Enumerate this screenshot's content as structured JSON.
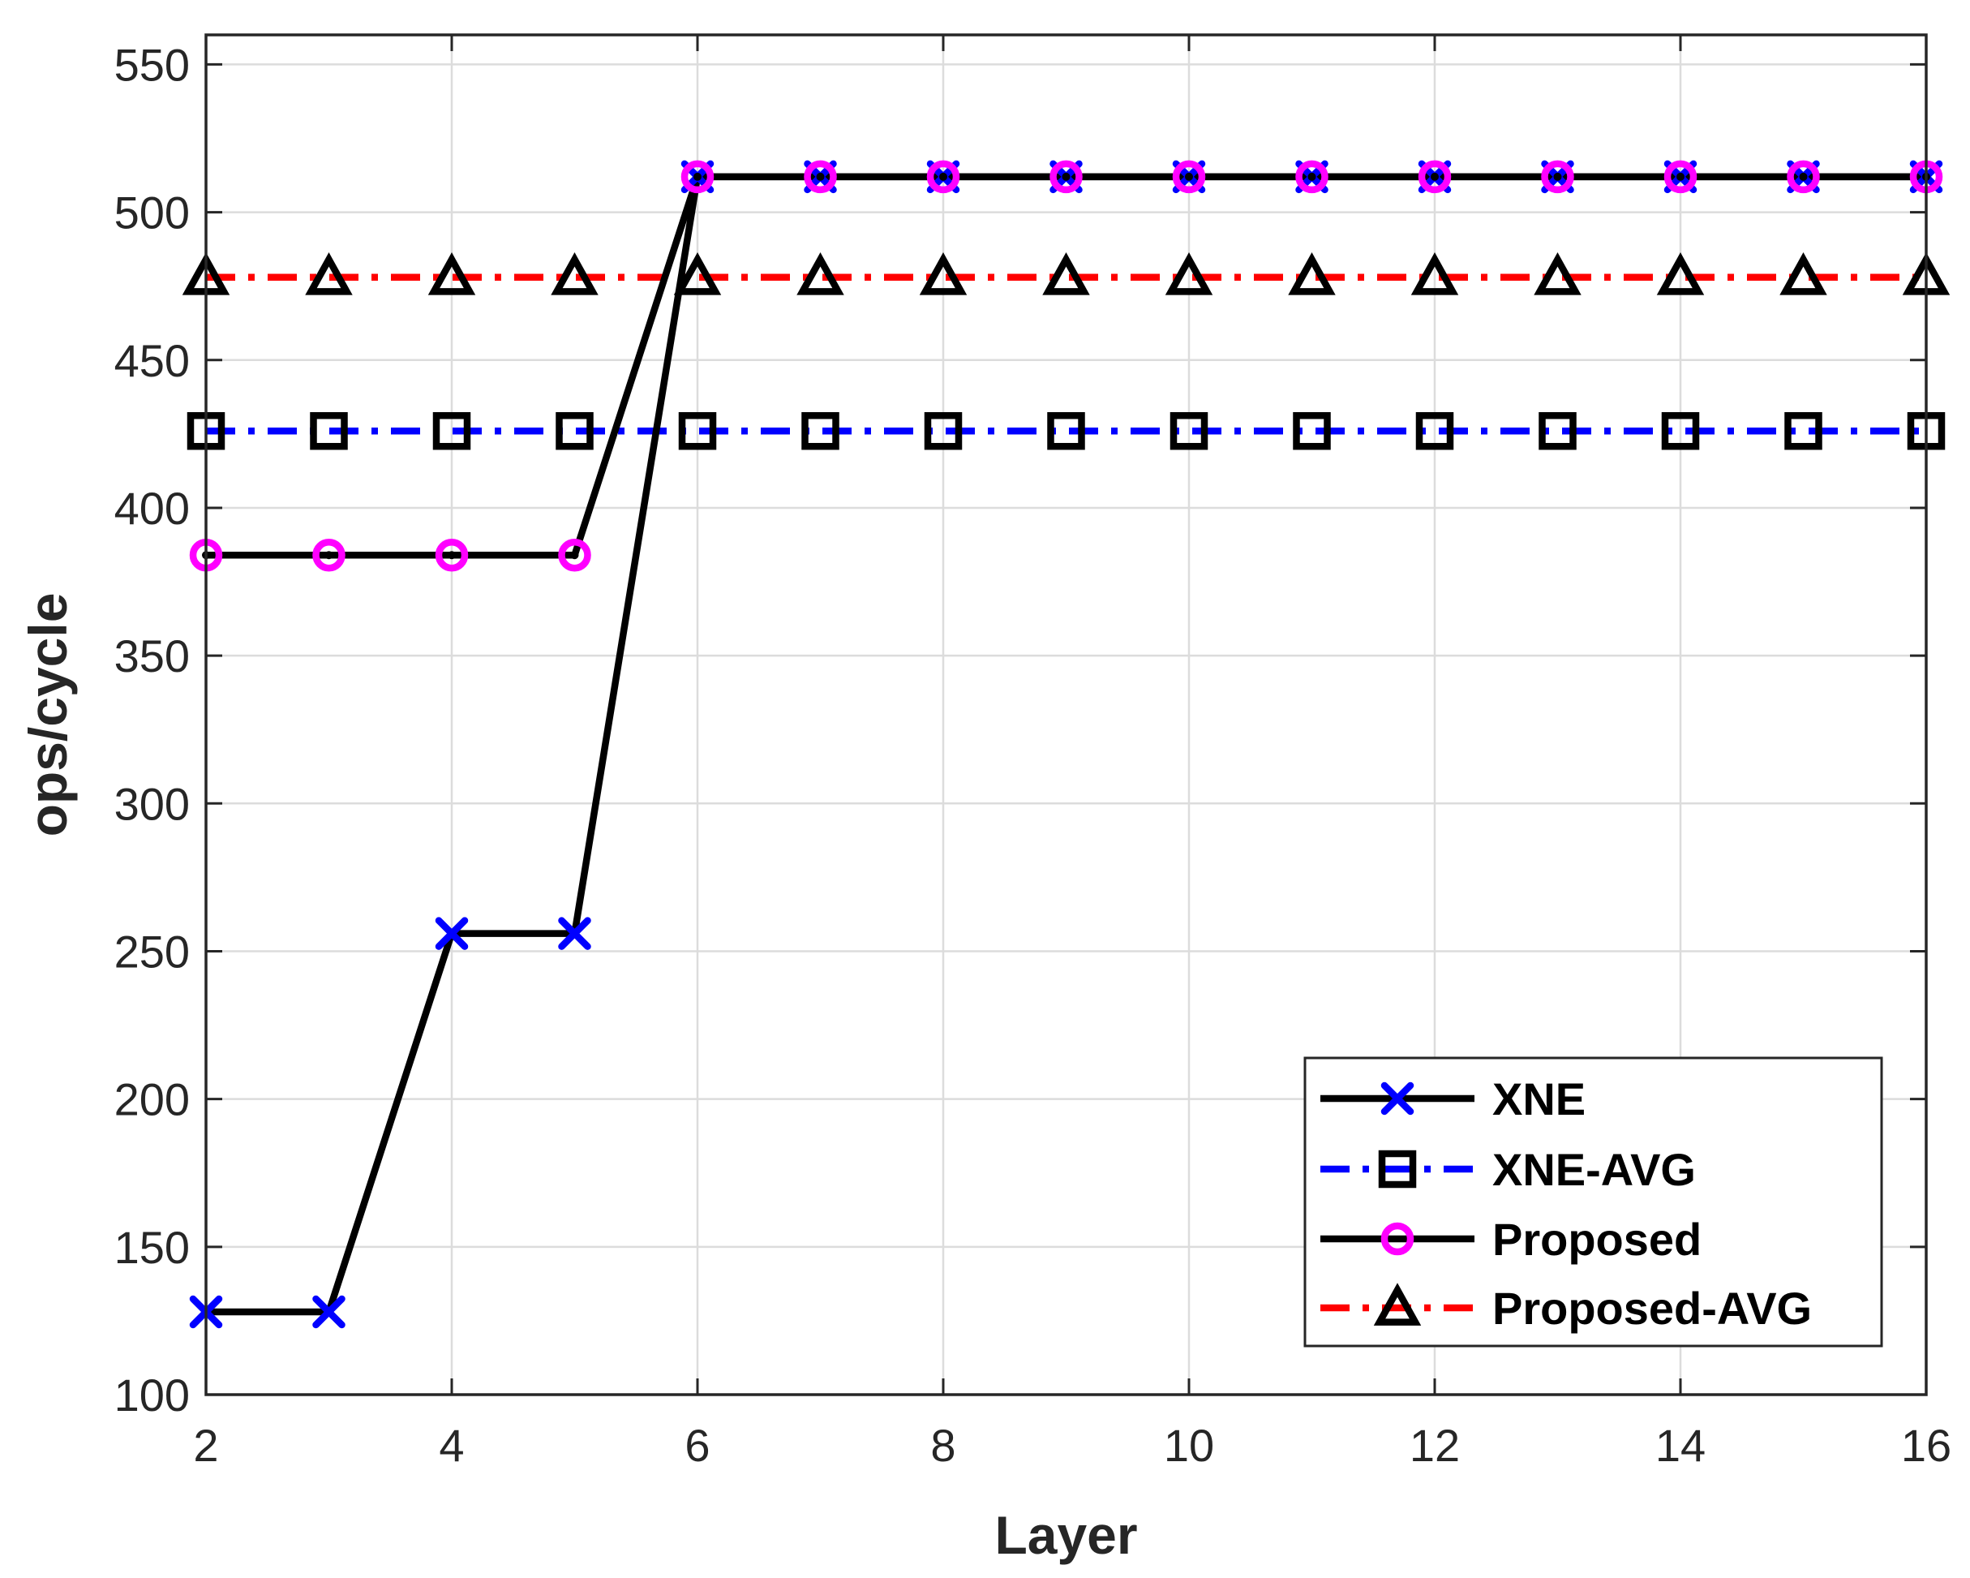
{
  "chart_data": {
    "type": "line",
    "xlabel": "Layer",
    "ylabel": "ops/cycle",
    "xlim": [
      2,
      16
    ],
    "ylim": [
      100,
      560
    ],
    "xticks": [
      2,
      4,
      6,
      8,
      10,
      12,
      14,
      16
    ],
    "yticks": [
      100,
      150,
      200,
      250,
      300,
      350,
      400,
      450,
      500,
      550
    ],
    "grid": true,
    "legend_position": "bottom-right",
    "x": [
      2,
      3,
      4,
      5,
      6,
      7,
      8,
      9,
      10,
      11,
      12,
      13,
      14,
      15,
      16
    ],
    "series": [
      {
        "name": "XNE",
        "values": [
          128,
          128,
          256,
          256,
          512,
          512,
          512,
          512,
          512,
          512,
          512,
          512,
          512,
          512,
          512
        ],
        "line_color": "#000000",
        "line_style": "solid",
        "marker": "x",
        "marker_color": "#0000ff"
      },
      {
        "name": "XNE-AVG",
        "values": [
          426,
          426,
          426,
          426,
          426,
          426,
          426,
          426,
          426,
          426,
          426,
          426,
          426,
          426,
          426
        ],
        "line_color": "#0000ff",
        "line_style": "dashdot",
        "marker": "square",
        "marker_color": "#000000"
      },
      {
        "name": "Proposed",
        "values": [
          384,
          384,
          384,
          384,
          512,
          512,
          512,
          512,
          512,
          512,
          512,
          512,
          512,
          512,
          512
        ],
        "line_color": "#000000",
        "line_style": "solid",
        "marker": "circle",
        "marker_color": "#ff00ff"
      },
      {
        "name": "Proposed-AVG",
        "values": [
          478,
          478,
          478,
          478,
          478,
          478,
          478,
          478,
          478,
          478,
          478,
          478,
          478,
          478,
          478
        ],
        "line_color": "#ff0000",
        "line_style": "dashdot",
        "marker": "triangle",
        "marker_color": "#000000"
      }
    ]
  }
}
